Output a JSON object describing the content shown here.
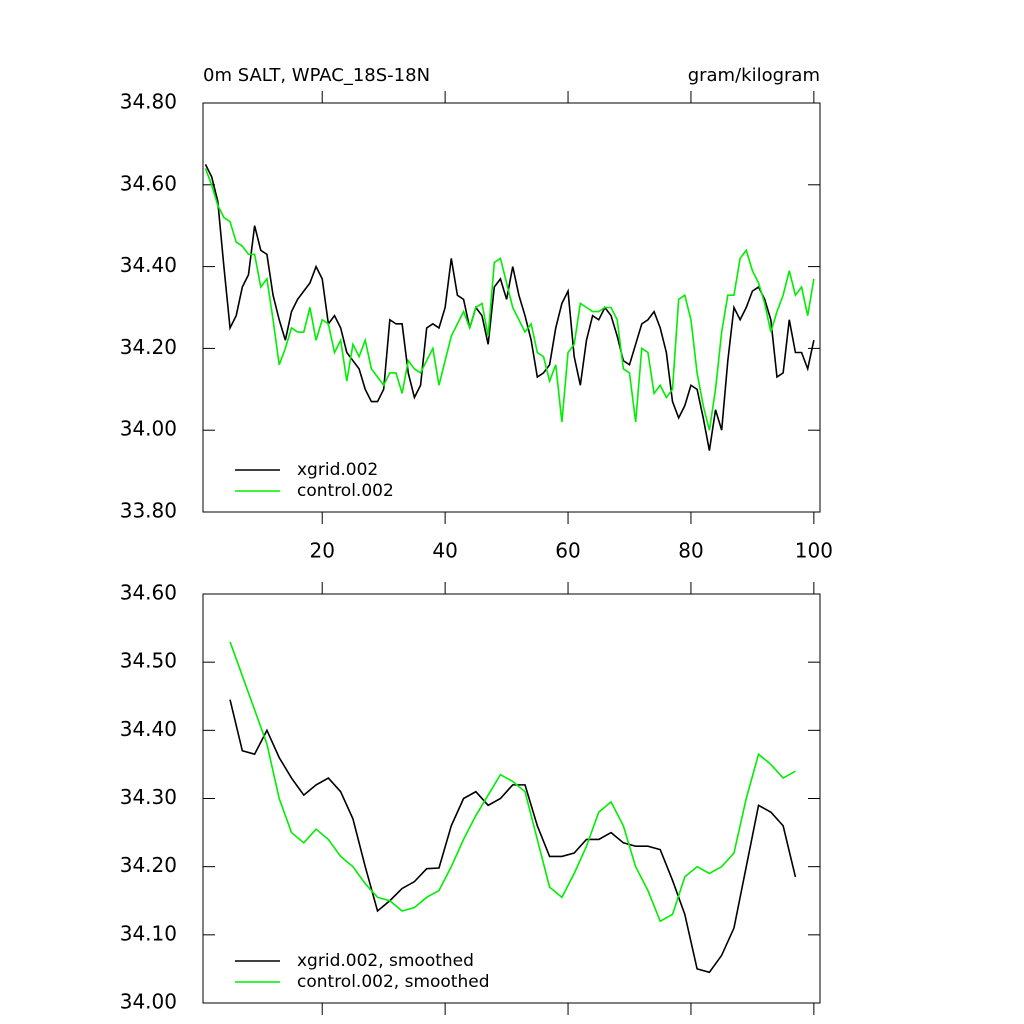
{
  "chart_data": [
    {
      "type": "line",
      "title": "0m SALT, WPAC_18S-18N",
      "subtitle": "gram/kilogram",
      "x": [
        1,
        2,
        3,
        4,
        5,
        6,
        7,
        8,
        9,
        10,
        11,
        12,
        13,
        14,
        15,
        16,
        17,
        18,
        19,
        20,
        21,
        22,
        23,
        24,
        25,
        26,
        27,
        28,
        29,
        30,
        31,
        32,
        33,
        34,
        35,
        36,
        37,
        38,
        39,
        40,
        41,
        42,
        43,
        44,
        45,
        46,
        47,
        48,
        49,
        50,
        51,
        52,
        53,
        54,
        55,
        56,
        57,
        58,
        59,
        60,
        61,
        62,
        63,
        64,
        65,
        66,
        67,
        68,
        69,
        70,
        71,
        72,
        73,
        74,
        75,
        76,
        77,
        78,
        79,
        80,
        81,
        82,
        83,
        84,
        85,
        86,
        87,
        88,
        89,
        90,
        91,
        92,
        93,
        94,
        95,
        96,
        97,
        98,
        99,
        100
      ],
      "series": [
        {
          "name": "xgrid.002",
          "color": "#000000",
          "values": [
            34.65,
            34.62,
            34.56,
            34.4,
            34.25,
            34.28,
            34.35,
            34.38,
            34.5,
            34.44,
            34.43,
            34.33,
            34.27,
            34.22,
            34.29,
            34.32,
            34.34,
            34.36,
            34.4,
            34.37,
            34.26,
            34.28,
            34.25,
            34.19,
            34.17,
            34.15,
            34.1,
            34.07,
            34.07,
            34.1,
            34.27,
            34.26,
            34.26,
            34.14,
            34.08,
            34.11,
            34.25,
            34.26,
            34.25,
            34.3,
            34.42,
            34.33,
            34.32,
            34.25,
            34.3,
            34.28,
            34.21,
            34.35,
            34.37,
            34.32,
            34.4,
            34.33,
            34.28,
            34.22,
            34.13,
            34.14,
            34.16,
            34.25,
            34.31,
            34.34,
            34.18,
            34.11,
            34.22,
            34.28,
            34.27,
            34.3,
            34.28,
            34.23,
            34.17,
            34.16,
            34.21,
            34.26,
            34.27,
            34.29,
            34.25,
            34.19,
            34.07,
            34.03,
            34.06,
            34.11,
            34.1,
            34.03,
            33.95,
            34.05,
            34.0,
            34.17,
            34.3,
            34.27,
            34.3,
            34.34,
            34.35,
            34.32,
            34.27,
            34.13,
            34.14,
            34.27,
            34.19,
            34.19,
            34.15,
            34.22
          ]
        },
        {
          "name": "control.002",
          "color": "#00ee00",
          "values": [
            34.64,
            34.6,
            34.55,
            34.52,
            34.51,
            34.46,
            34.45,
            34.43,
            34.43,
            34.35,
            34.37,
            34.27,
            34.16,
            34.2,
            34.25,
            34.24,
            34.24,
            34.3,
            34.22,
            34.27,
            34.26,
            34.19,
            34.22,
            34.12,
            34.21,
            34.18,
            34.22,
            34.15,
            34.13,
            34.11,
            34.14,
            34.14,
            34.09,
            34.17,
            34.15,
            34.14,
            34.17,
            34.2,
            34.11,
            34.17,
            34.23,
            34.26,
            34.29,
            34.25,
            34.3,
            34.31,
            34.23,
            34.41,
            34.42,
            34.36,
            34.3,
            34.27,
            34.24,
            34.26,
            34.19,
            34.18,
            34.12,
            34.16,
            34.02,
            34.19,
            34.21,
            34.31,
            34.3,
            34.29,
            34.29,
            34.3,
            34.3,
            34.27,
            34.15,
            34.14,
            34.02,
            34.2,
            34.19,
            34.09,
            34.11,
            34.08,
            34.1,
            34.32,
            34.33,
            34.27,
            34.14,
            34.06,
            34.0,
            34.1,
            34.24,
            34.33,
            34.33,
            34.42,
            34.44,
            34.39,
            34.36,
            34.31,
            34.24,
            34.29,
            34.33,
            34.39,
            34.33,
            34.35,
            34.28,
            34.37
          ]
        }
      ],
      "xlim": [
        0.6,
        101
      ],
      "xticks": [
        20,
        40,
        60,
        80,
        100
      ],
      "show_xtick_labels": true,
      "ylim": [
        33.8,
        34.8
      ],
      "yticks": [
        {
          "value": 33.8,
          "label": "33.80"
        },
        {
          "value": 34.0,
          "label": "34.00"
        },
        {
          "value": 34.2,
          "label": "34.20"
        },
        {
          "value": 34.4,
          "label": "34.40"
        },
        {
          "value": 34.6,
          "label": "34.60"
        },
        {
          "value": 34.8,
          "label": "34.80"
        }
      ]
    },
    {
      "type": "line",
      "x": [
        5,
        7,
        9,
        11,
        13,
        15,
        17,
        19,
        21,
        23,
        25,
        27,
        29,
        31,
        33,
        35,
        37,
        39,
        41,
        43,
        45,
        47,
        49,
        51,
        53,
        55,
        57,
        59,
        61,
        63,
        65,
        67,
        69,
        71,
        73,
        75,
        77,
        79,
        81,
        83,
        85,
        87,
        89,
        91,
        93,
        95,
        97
      ],
      "series": [
        {
          "name": "xgrid.002, smoothed",
          "color": "#000000",
          "values": [
            34.445,
            34.37,
            34.365,
            34.4,
            34.36,
            34.33,
            34.305,
            34.32,
            34.33,
            34.31,
            34.27,
            34.2,
            34.135,
            34.15,
            34.168,
            34.178,
            34.197,
            34.198,
            34.26,
            34.3,
            34.31,
            34.29,
            34.3,
            34.32,
            34.32,
            34.26,
            34.215,
            34.215,
            34.22,
            34.24,
            34.24,
            34.25,
            34.235,
            34.23,
            34.23,
            34.225,
            34.18,
            34.13,
            34.05,
            34.045,
            34.07,
            34.11,
            34.2,
            34.29,
            34.28,
            34.26,
            34.185
          ]
        },
        {
          "name": "control.002, smoothed",
          "color": "#00ee00",
          "values": [
            34.53,
            34.48,
            34.43,
            34.38,
            34.3,
            34.25,
            34.235,
            34.255,
            34.24,
            34.215,
            34.2,
            34.175,
            34.155,
            34.15,
            34.135,
            34.14,
            34.155,
            34.165,
            34.2,
            34.24,
            34.275,
            34.305,
            34.335,
            34.325,
            34.31,
            34.24,
            34.17,
            34.155,
            34.19,
            34.23,
            34.28,
            34.295,
            34.26,
            34.2,
            34.165,
            34.12,
            34.13,
            34.185,
            34.2,
            34.19,
            34.2,
            34.22,
            34.3,
            34.365,
            34.35,
            34.33,
            34.34
          ]
        }
      ],
      "xlim": [
        0.6,
        101
      ],
      "xticks": [
        20,
        40,
        60,
        80,
        100
      ],
      "show_xtick_labels": false,
      "ylim": [
        34.0,
        34.6
      ],
      "yticks": [
        {
          "value": 34.0,
          "label": "34.00"
        },
        {
          "value": 34.1,
          "label": "34.10"
        },
        {
          "value": 34.2,
          "label": "34.20"
        },
        {
          "value": 34.3,
          "label": "34.30"
        },
        {
          "value": 34.4,
          "label": "34.40"
        },
        {
          "value": 34.5,
          "label": "34.50"
        },
        {
          "value": 34.6,
          "label": "34.60"
        }
      ]
    }
  ]
}
